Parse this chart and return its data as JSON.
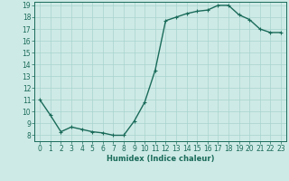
{
  "x": [
    0,
    1,
    2,
    3,
    4,
    5,
    6,
    7,
    8,
    9,
    10,
    11,
    12,
    13,
    14,
    15,
    16,
    17,
    18,
    19,
    20,
    21,
    22,
    23
  ],
  "y": [
    11.0,
    9.7,
    8.3,
    8.7,
    8.5,
    8.3,
    8.2,
    8.0,
    8.0,
    9.2,
    10.8,
    13.5,
    17.7,
    18.0,
    18.3,
    18.5,
    18.6,
    19.0,
    19.0,
    18.2,
    17.8,
    17.0,
    16.7,
    16.7
  ],
  "ylim_min": 8,
  "ylim_max": 19,
  "yticks": [
    8,
    9,
    10,
    11,
    12,
    13,
    14,
    15,
    16,
    17,
    18,
    19
  ],
  "xticks": [
    0,
    1,
    2,
    3,
    4,
    5,
    6,
    7,
    8,
    9,
    10,
    11,
    12,
    13,
    14,
    15,
    16,
    17,
    18,
    19,
    20,
    21,
    22,
    23
  ],
  "xlabel": "Humidex (Indice chaleur)",
  "line_color": "#1a6b5a",
  "marker": "+",
  "bg_color": "#ceeae6",
  "grid_color": "#a8d4cf",
  "spine_color": "#1a6b5a",
  "tick_color": "#1a6b5a",
  "label_fontsize": 6.0,
  "tick_fontsize": 5.5,
  "linewidth": 1.0,
  "markersize": 3.5,
  "markeredgewidth": 0.8
}
